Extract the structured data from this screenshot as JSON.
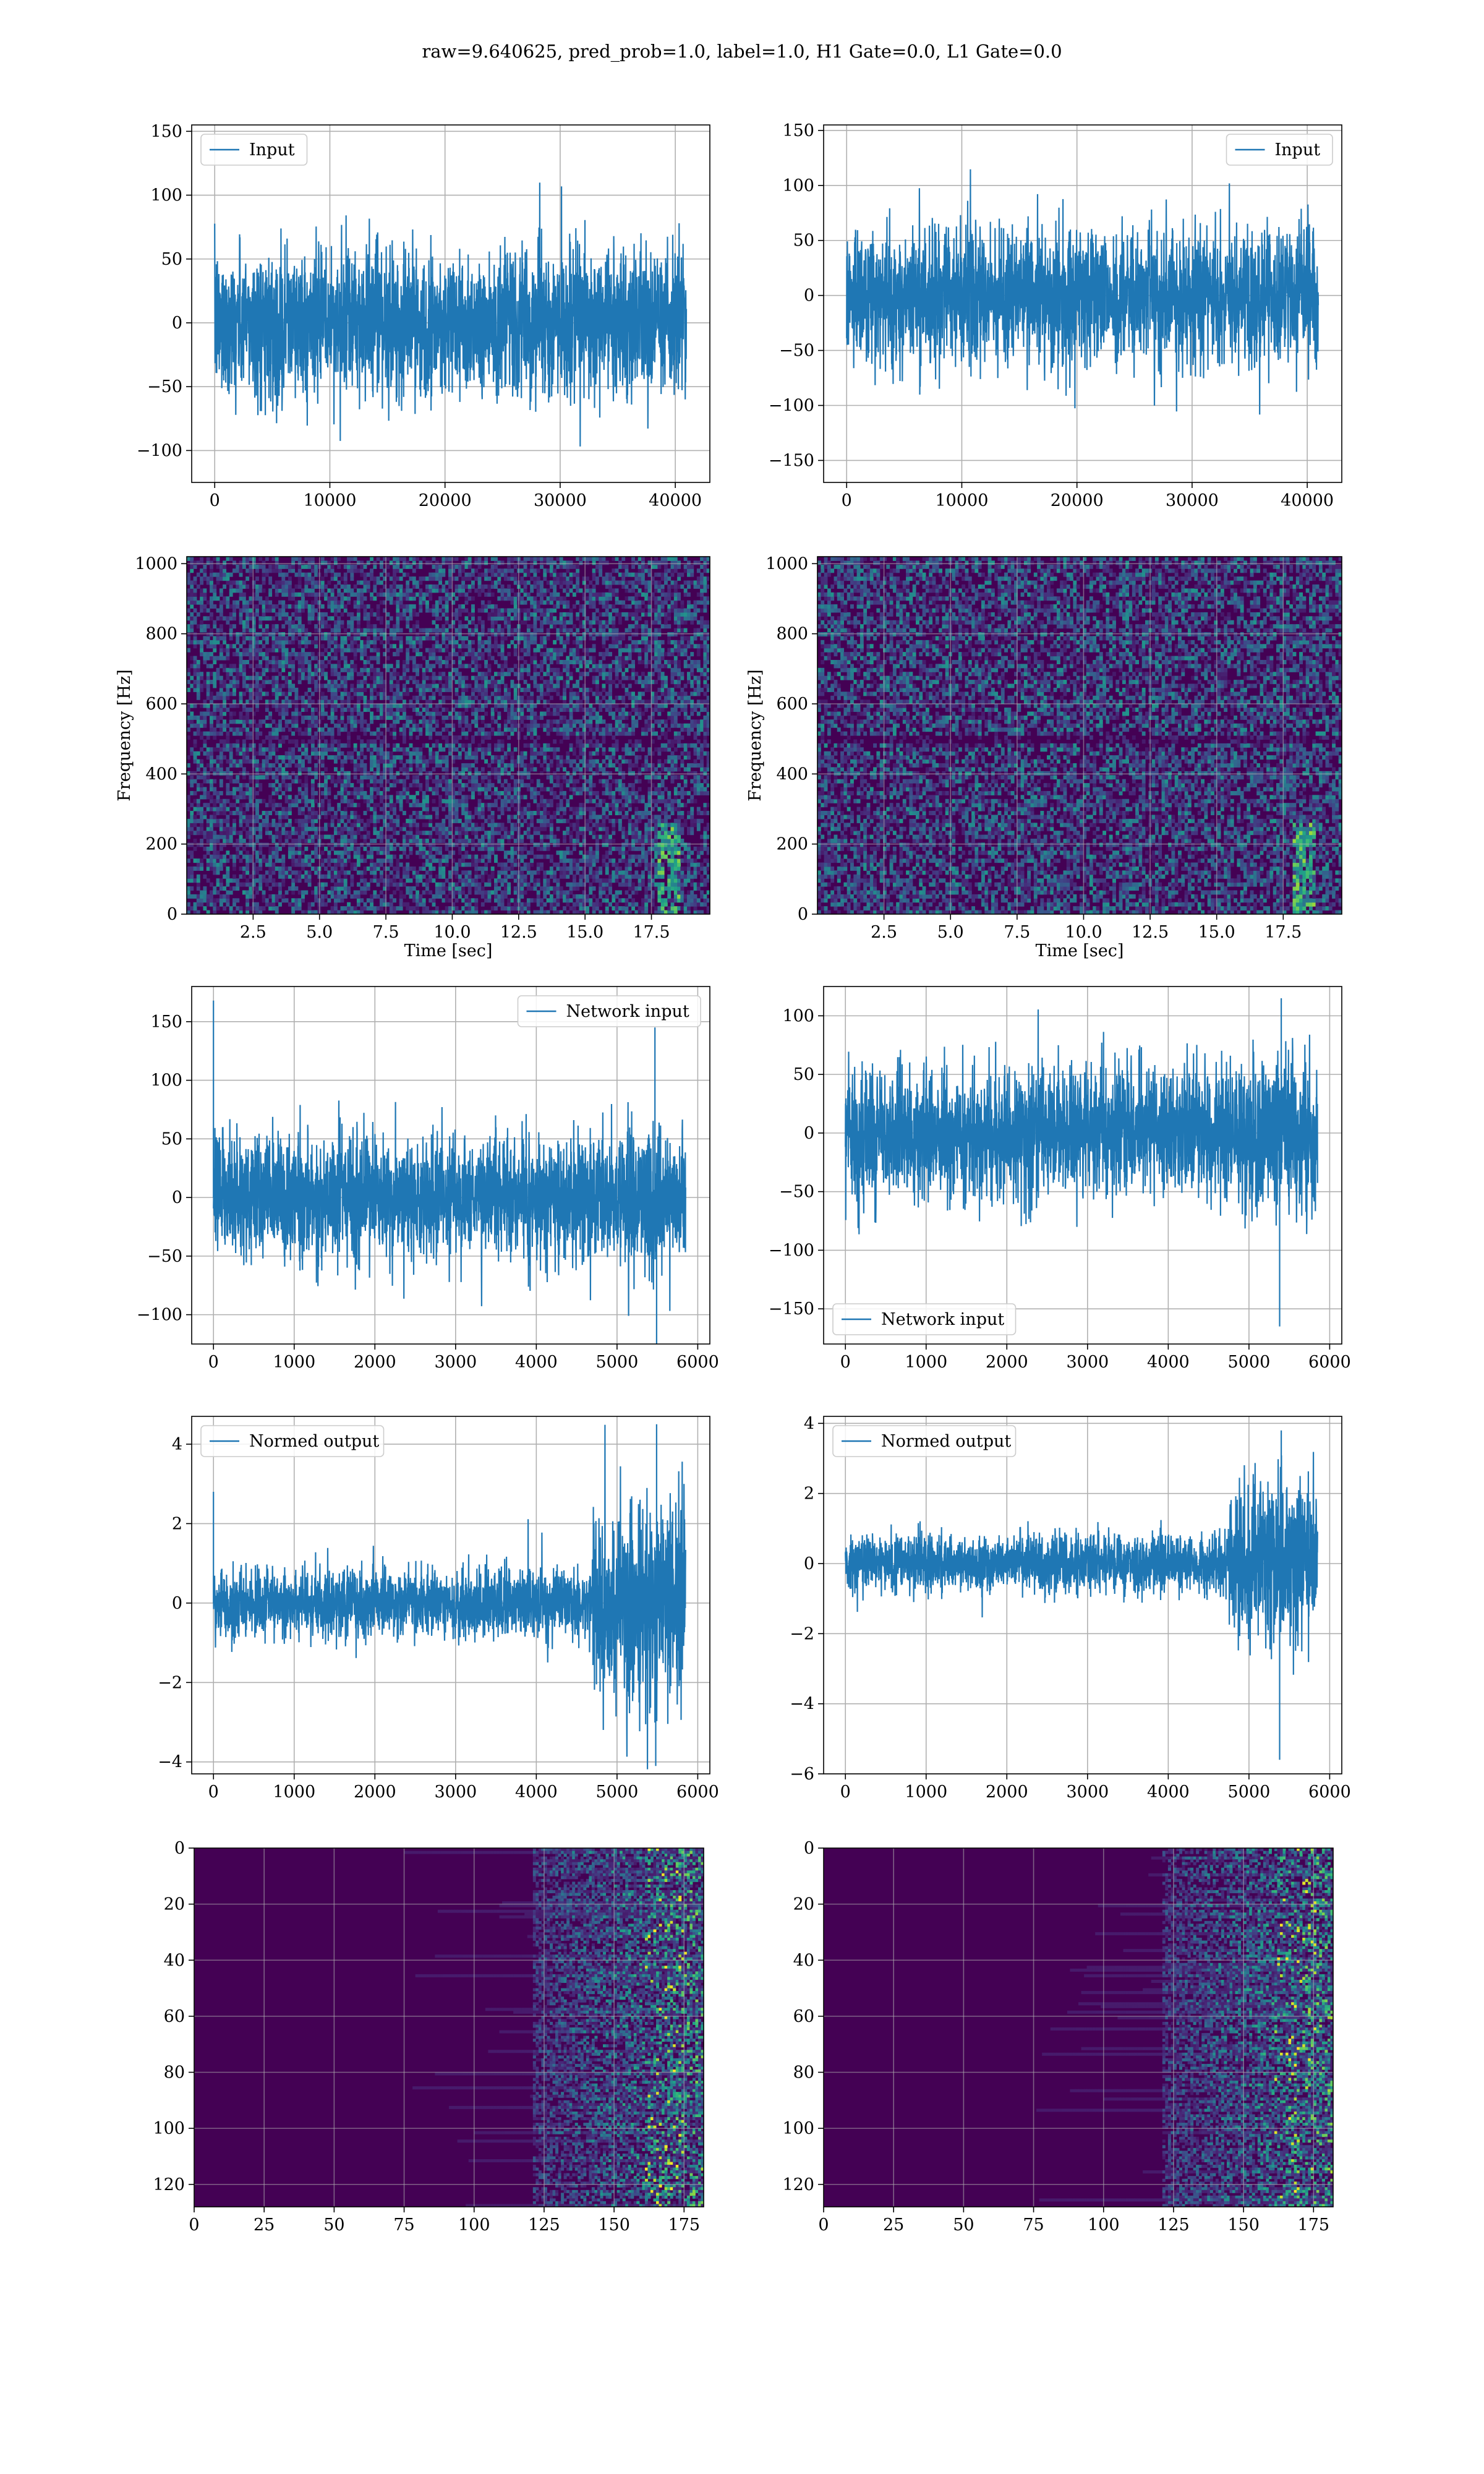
{
  "suptitle": "raw=9.640625, pred_prob=1.0, label=1.0, H1 Gate=0.0, L1 Gate=0.0",
  "colors": {
    "series": "#1f77b4",
    "grid": "#d0d0d0",
    "viridis_low": "#440154",
    "viridis_mid": "#21918c",
    "viridis_high": "#fde725"
  },
  "chart_data": [
    {
      "id": "input-left",
      "type": "line",
      "style": "noise",
      "x": [
        0,
        40960
      ],
      "ylim": [
        -125,
        155
      ],
      "xlim": [
        -2000,
        43000
      ],
      "noise_sigma": 28,
      "envelope": [
        [
          0,
          40960,
          1.0
        ]
      ],
      "series": [
        {
          "name": "Input"
        }
      ],
      "legend": "top-left",
      "xticks": [
        0,
        10000,
        20000,
        30000,
        40000
      ],
      "xtick_labels": [
        "0",
        "10000",
        "20000",
        "30000",
        "40000"
      ],
      "yticks": [
        -100,
        -50,
        0,
        50,
        100,
        150
      ],
      "ytick_labels": [
        "−100",
        "−50",
        "0",
        "50",
        "100",
        "150"
      ],
      "xlabel": "",
      "ylabel": ""
    },
    {
      "id": "input-right",
      "type": "line",
      "style": "noise",
      "x": [
        0,
        40960
      ],
      "ylim": [
        -170,
        155
      ],
      "xlim": [
        -2000,
        43000
      ],
      "noise_sigma": 30,
      "envelope": [
        [
          0,
          40960,
          1.0
        ]
      ],
      "series": [
        {
          "name": "Input"
        }
      ],
      "legend": "top-right",
      "xticks": [
        0,
        10000,
        20000,
        30000,
        40000
      ],
      "xtick_labels": [
        "0",
        "10000",
        "20000",
        "30000",
        "40000"
      ],
      "yticks": [
        -150,
        -100,
        -50,
        0,
        50,
        100,
        150
      ],
      "ytick_labels": [
        "−150",
        "−100",
        "−50",
        "0",
        "50",
        "100",
        "150"
      ],
      "xlabel": "",
      "ylabel": ""
    },
    {
      "id": "spec-left",
      "type": "heatmap",
      "style": "spectrogram",
      "xlim": [
        0,
        19.7
      ],
      "ylim": [
        0,
        1020
      ],
      "chirp_time": 18.2,
      "xticks": [
        2.5,
        5.0,
        7.5,
        10.0,
        12.5,
        15.0,
        17.5
      ],
      "xtick_labels": [
        "2.5",
        "5.0",
        "7.5",
        "10.0",
        "12.5",
        "15.0",
        "17.5"
      ],
      "yticks": [
        0,
        200,
        400,
        600,
        800,
        1000
      ],
      "ytick_labels": [
        "0",
        "200",
        "400",
        "600",
        "800",
        "1000"
      ],
      "xlabel": "Time [sec]",
      "ylabel": "Frequency [Hz]"
    },
    {
      "id": "spec-right",
      "type": "heatmap",
      "style": "spectrogram",
      "xlim": [
        0,
        19.7
      ],
      "ylim": [
        0,
        1020
      ],
      "chirp_time": 18.3,
      "xticks": [
        2.5,
        5.0,
        7.5,
        10.0,
        12.5,
        15.0,
        17.5
      ],
      "xtick_labels": [
        "2.5",
        "5.0",
        "7.5",
        "10.0",
        "12.5",
        "15.0",
        "17.5"
      ],
      "yticks": [
        0,
        200,
        400,
        600,
        800,
        1000
      ],
      "ytick_labels": [
        "0",
        "200",
        "400",
        "600",
        "800",
        "1000"
      ],
      "xlabel": "Time [sec]",
      "ylabel": "Frequency [Hz]"
    },
    {
      "id": "netin-left",
      "type": "line",
      "style": "noise",
      "x": [
        0,
        5850
      ],
      "ylim": [
        -125,
        180
      ],
      "xlim": [
        -270,
        6150
      ],
      "noise_sigma": 25,
      "envelope": [
        [
          0,
          5000,
          1.0
        ],
        [
          5000,
          5850,
          1.3
        ]
      ],
      "spikes": [
        [
          0,
          168
        ],
        [
          5490,
          -125
        ],
        [
          5470,
          145
        ]
      ],
      "series": [
        {
          "name": "Network input"
        }
      ],
      "legend": "top-right",
      "xticks": [
        0,
        1000,
        2000,
        3000,
        4000,
        5000,
        6000
      ],
      "xtick_labels": [
        "0",
        "1000",
        "2000",
        "3000",
        "4000",
        "5000",
        "6000"
      ],
      "yticks": [
        -100,
        -50,
        0,
        50,
        100,
        150
      ],
      "ytick_labels": [
        "−100",
        "−50",
        "0",
        "50",
        "100",
        "150"
      ],
      "xlabel": "",
      "ylabel": ""
    },
    {
      "id": "netin-right",
      "type": "line",
      "style": "noise",
      "x": [
        0,
        5850
      ],
      "ylim": [
        -180,
        125
      ],
      "xlim": [
        -270,
        6150
      ],
      "noise_sigma": 27,
      "envelope": [
        [
          0,
          5000,
          1.0
        ],
        [
          5000,
          5850,
          1.25
        ]
      ],
      "spikes": [
        [
          5380,
          -165
        ],
        [
          5400,
          115
        ]
      ],
      "series": [
        {
          "name": "Network input"
        }
      ],
      "legend": "bottom-left",
      "xticks": [
        0,
        1000,
        2000,
        3000,
        4000,
        5000,
        6000
      ],
      "xtick_labels": [
        "0",
        "1000",
        "2000",
        "3000",
        "4000",
        "5000",
        "6000"
      ],
      "yticks": [
        -150,
        -100,
        -50,
        0,
        50,
        100
      ],
      "ytick_labels": [
        "−150",
        "−100",
        "−50",
        "0",
        "50",
        "100"
      ],
      "xlabel": "",
      "ylabel": ""
    },
    {
      "id": "normed-left",
      "type": "line",
      "style": "noise",
      "x": [
        0,
        5850
      ],
      "ylim": [
        -4.3,
        4.7
      ],
      "xlim": [
        -270,
        6150
      ],
      "noise_sigma": 0.42,
      "envelope": [
        [
          0,
          4700,
          1.0
        ],
        [
          4700,
          5850,
          3.0
        ]
      ],
      "spikes": [
        [
          0,
          2.8
        ],
        [
          5490,
          4.5
        ],
        [
          5480,
          -4.1
        ]
      ],
      "series": [
        {
          "name": "Normed output"
        }
      ],
      "legend": "top-left",
      "xticks": [
        0,
        1000,
        2000,
        3000,
        4000,
        5000,
        6000
      ],
      "xtick_labels": [
        "0",
        "1000",
        "2000",
        "3000",
        "4000",
        "5000",
        "6000"
      ],
      "yticks": [
        -4,
        -2,
        0,
        2,
        4
      ],
      "ytick_labels": [
        "−4",
        "−2",
        "0",
        "2",
        "4"
      ],
      "xlabel": "",
      "ylabel": ""
    },
    {
      "id": "normed-right",
      "type": "line",
      "style": "noise",
      "x": [
        0,
        5850
      ],
      "ylim": [
        -6.0,
        4.2
      ],
      "xlim": [
        -270,
        6150
      ],
      "noise_sigma": 0.4,
      "envelope": [
        [
          0,
          4750,
          1.0
        ],
        [
          4750,
          5850,
          3.0
        ]
      ],
      "spikes": [
        [
          5380,
          -5.6
        ],
        [
          5400,
          3.8
        ]
      ],
      "series": [
        {
          "name": "Normed output"
        }
      ],
      "legend": "top-left",
      "xticks": [
        0,
        1000,
        2000,
        3000,
        4000,
        5000,
        6000
      ],
      "xtick_labels": [
        "0",
        "1000",
        "2000",
        "3000",
        "4000",
        "5000",
        "6000"
      ],
      "yticks": [
        -6,
        -4,
        -2,
        0,
        2,
        4
      ],
      "ytick_labels": [
        "−6",
        "−4",
        "−2",
        "0",
        "2",
        "4"
      ],
      "xlabel": "",
      "ylabel": ""
    },
    {
      "id": "feat-left",
      "type": "heatmap",
      "style": "feature-map",
      "xlim": [
        0,
        182
      ],
      "ylim": [
        128,
        0
      ],
      "xticks": [
        0,
        25,
        50,
        75,
        100,
        125,
        150,
        175
      ],
      "xtick_labels": [
        "0",
        "25",
        "50",
        "75",
        "100",
        "125",
        "150",
        "175"
      ],
      "yticks": [
        0,
        20,
        40,
        60,
        80,
        100,
        120
      ],
      "ytick_labels": [
        "0",
        "20",
        "40",
        "60",
        "80",
        "100",
        "120"
      ],
      "xlabel": "",
      "ylabel": ""
    },
    {
      "id": "feat-right",
      "type": "heatmap",
      "style": "feature-map",
      "xlim": [
        0,
        182
      ],
      "ylim": [
        128,
        0
      ],
      "xticks": [
        0,
        25,
        50,
        75,
        100,
        125,
        150,
        175
      ],
      "xtick_labels": [
        "0",
        "25",
        "50",
        "75",
        "100",
        "125",
        "150",
        "175"
      ],
      "yticks": [
        0,
        20,
        40,
        60,
        80,
        100,
        120
      ],
      "ytick_labels": [
        "0",
        "20",
        "40",
        "60",
        "80",
        "100",
        "120"
      ],
      "xlabel": "",
      "ylabel": ""
    }
  ]
}
